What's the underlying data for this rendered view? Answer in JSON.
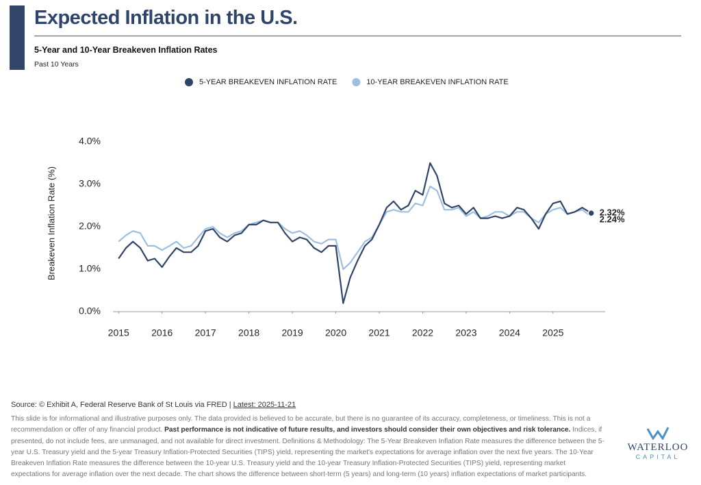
{
  "header": {
    "title": "Expected Inflation in the U.S.",
    "subtitle": "5-Year and 10-Year Breakeven Inflation Rates",
    "period": "Past 10 Years"
  },
  "chart_data": {
    "type": "line",
    "y_axis_label": "Breakeven Inflation Rate (%)",
    "x": [
      2015.0,
      2015.17,
      2015.33,
      2015.5,
      2015.67,
      2015.83,
      2016.0,
      2016.17,
      2016.33,
      2016.5,
      2016.67,
      2016.83,
      2017.0,
      2017.17,
      2017.33,
      2017.5,
      2017.67,
      2017.83,
      2018.0,
      2018.17,
      2018.33,
      2018.5,
      2018.67,
      2018.83,
      2019.0,
      2019.17,
      2019.33,
      2019.5,
      2019.67,
      2019.83,
      2020.0,
      2020.17,
      2020.33,
      2020.5,
      2020.67,
      2020.83,
      2021.0,
      2021.17,
      2021.33,
      2021.5,
      2021.67,
      2021.83,
      2022.0,
      2022.17,
      2022.33,
      2022.5,
      2022.67,
      2022.83,
      2023.0,
      2023.17,
      2023.33,
      2023.5,
      2023.67,
      2023.83,
      2024.0,
      2024.17,
      2024.33,
      2024.5,
      2024.67,
      2024.83,
      2025.0,
      2025.17,
      2025.33,
      2025.5,
      2025.67,
      2025.88
    ],
    "series": [
      {
        "name": "5-YEAR BREAKEVEN INFLATION RATE",
        "color": "#2f4467",
        "last_value_label": "2.32%",
        "values": [
          1.25,
          1.5,
          1.65,
          1.5,
          1.2,
          1.25,
          1.05,
          1.3,
          1.5,
          1.4,
          1.4,
          1.55,
          1.9,
          1.95,
          1.75,
          1.65,
          1.8,
          1.85,
          2.05,
          2.05,
          2.15,
          2.1,
          2.1,
          1.85,
          1.65,
          1.75,
          1.7,
          1.5,
          1.4,
          1.55,
          1.55,
          0.2,
          0.8,
          1.2,
          1.55,
          1.7,
          2.05,
          2.45,
          2.6,
          2.4,
          2.5,
          2.85,
          2.75,
          3.5,
          3.2,
          2.55,
          2.45,
          2.5,
          2.3,
          2.45,
          2.2,
          2.2,
          2.25,
          2.2,
          2.25,
          2.45,
          2.4,
          2.2,
          1.95,
          2.3,
          2.55,
          2.6,
          2.3,
          2.35,
          2.45,
          2.32
        ]
      },
      {
        "name": "10-YEAR BREAKEVEN INFLATION RATE",
        "color": "#9dbfdf",
        "last_value_label": "2.24%",
        "values": [
          1.65,
          1.8,
          1.9,
          1.85,
          1.55,
          1.55,
          1.45,
          1.55,
          1.65,
          1.5,
          1.55,
          1.75,
          1.95,
          2.0,
          1.85,
          1.75,
          1.85,
          1.9,
          2.05,
          2.1,
          2.15,
          2.1,
          2.1,
          1.95,
          1.85,
          1.9,
          1.8,
          1.65,
          1.6,
          1.7,
          1.7,
          1.0,
          1.15,
          1.4,
          1.65,
          1.75,
          2.05,
          2.35,
          2.4,
          2.35,
          2.35,
          2.55,
          2.5,
          2.95,
          2.85,
          2.4,
          2.4,
          2.45,
          2.25,
          2.35,
          2.2,
          2.25,
          2.35,
          2.35,
          2.25,
          2.35,
          2.35,
          2.2,
          2.1,
          2.3,
          2.4,
          2.45,
          2.3,
          2.35,
          2.4,
          2.24
        ]
      }
    ],
    "xlim": [
      2014.87,
      2026.2
    ],
    "xticks": [
      2015,
      2016,
      2017,
      2018,
      2019,
      2020,
      2021,
      2022,
      2023,
      2024,
      2025
    ],
    "ylim": [
      0,
      4
    ],
    "yticks": [
      {
        "value": 0,
        "label": "0.0%"
      },
      {
        "value": 1,
        "label": "1.0%"
      },
      {
        "value": 2,
        "label": "2.0%"
      },
      {
        "value": 3,
        "label": "3.0%"
      },
      {
        "value": 4,
        "label": "4.0%"
      }
    ],
    "grid": false
  },
  "footer": {
    "source": "Source: © Exhibit A, Federal Reserve Bank of St Louis via FRED |",
    "latest": "Latest: 2025-11-21",
    "disclaimer_1": "This slide is for informational and illustrative purposes only. The data provided is believed to be accurate, but there is no guarantee of its accuracy, completeness, or timeliness. This is not a recommendation or offer of any financial product.",
    "disclaimer_bold": "Past performance is not indicative of future results, and investors should consider their own objectives and risk tolerance.",
    "disclaimer_2": "Indices, if presented, do not include fees, are unmanaged, and not available for direct investment. Definitions & Methodology: The 5-Year Breakeven Inflation Rate measures the difference between the 5-year U.S. Treasury yield and the 5-year Treasury Inflation-Protected Securities (TIPS) yield, representing the market's expectations for average inflation over the next five years. The 10-Year Breakeven Inflation Rate measures the difference between the 10-year U.S. Treasury yield and the 10-year Treasury Inflation-Protected Securities (TIPS) yield, representing market expectations for average inflation over the next decade. The chart shows the difference between short-term (5 years) and long-term (10 years) inflation expectations of market participants."
  },
  "logo": {
    "name": "WATERLOO",
    "sub": "CAPITAL"
  }
}
